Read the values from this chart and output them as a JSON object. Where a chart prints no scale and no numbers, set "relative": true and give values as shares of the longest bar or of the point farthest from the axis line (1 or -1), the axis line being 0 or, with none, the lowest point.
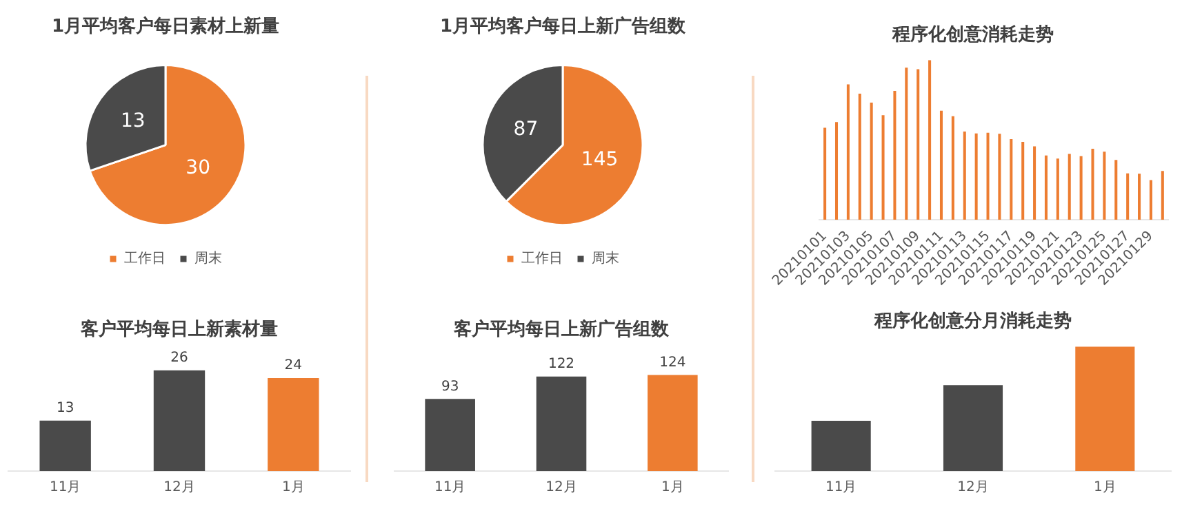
{
  "chart_data": [
    {
      "type": "pie",
      "title": "1月平均客户每日素材上新量",
      "categories": [
        "工作日",
        "周末"
      ],
      "values": [
        30,
        13
      ],
      "colors": [
        "#ed7d31",
        "#4a4a4a"
      ],
      "data_labels": true,
      "legend": "bottom"
    },
    {
      "type": "pie",
      "title": "1月平均客户每日上新广告组数",
      "categories": [
        "工作日",
        "周末"
      ],
      "values": [
        145,
        87
      ],
      "colors": [
        "#ed7d31",
        "#4a4a4a"
      ],
      "data_labels": true,
      "legend": "bottom"
    },
    {
      "type": "bar",
      "title": "程序化创意消耗走势",
      "relative": true,
      "color": "#ed7d31",
      "categories": [
        "20210101",
        null,
        "20210103",
        null,
        "20210105",
        null,
        "20210107",
        null,
        "20210109",
        null,
        "20210111",
        null,
        "20210113",
        null,
        "20210115",
        null,
        "20210117",
        null,
        "20210119",
        null,
        "20210121",
        null,
        "20210123",
        null,
        "20210125",
        null,
        "20210127",
        null,
        "20210129",
        null
      ],
      "values": [
        0.576,
        0.612,
        0.848,
        0.79,
        0.733,
        0.655,
        0.807,
        0.952,
        0.943,
        1,
        0.683,
        0.648,
        0.552,
        0.54,
        0.545,
        0.538,
        0.505,
        0.488,
        0.46,
        0.402,
        0.383,
        0.412,
        0.398,
        0.445,
        0.426,
        0.374,
        0.29,
        0.288,
        0.248,
        0.305
      ]
    },
    {
      "type": "bar",
      "title": "客户平均每日上新素材量",
      "categories": [
        "11月",
        "12月",
        "1月"
      ],
      "values": [
        13,
        26,
        24
      ],
      "colors": [
        "#4a4a4a",
        "#4a4a4a",
        "#ed7d31"
      ],
      "data_labels": true,
      "tick_labels": "x"
    },
    {
      "type": "bar",
      "title": "客户平均每日上新广告组数",
      "categories": [
        "11月",
        "12月",
        "1月"
      ],
      "values": [
        93,
        122,
        124
      ],
      "colors": [
        "#4a4a4a",
        "#4a4a4a",
        "#ed7d31"
      ],
      "data_labels": true,
      "tick_labels": "x"
    },
    {
      "type": "bar",
      "title": "程序化创意分月消耗走势",
      "relative": true,
      "categories": [
        "11月",
        "12月",
        "1月"
      ],
      "values": [
        0.404,
        0.69,
        1
      ],
      "colors": [
        "#4a4a4a",
        "#4a4a4a",
        "#ed7d31"
      ]
    }
  ]
}
